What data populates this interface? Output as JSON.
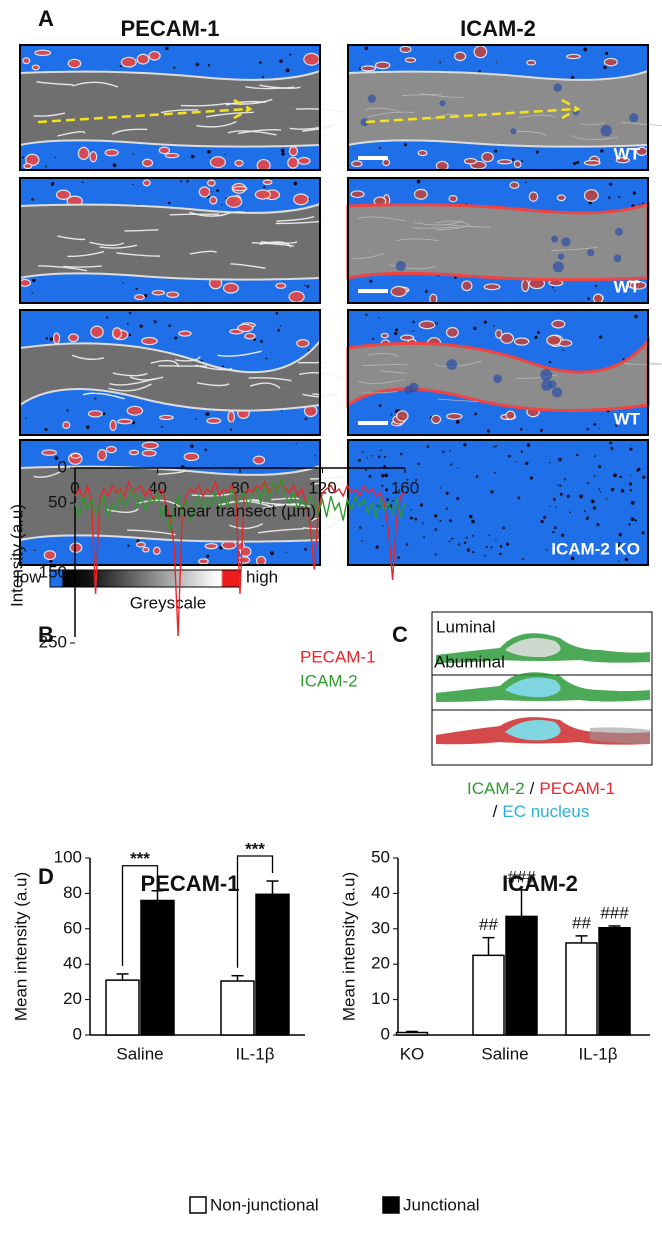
{
  "panel_a": {
    "label": "A",
    "titles": [
      "PECAM-1",
      "ICAM-2"
    ],
    "image_labels": [
      "WT",
      "WT",
      "WT",
      "ICAM-2 KO"
    ],
    "scale": {
      "low": "low",
      "high": "high",
      "title": "Greyscale"
    }
  },
  "panel_c": {
    "label": "C",
    "top": "Luminal",
    "bottom": "Abuminal",
    "caption": [
      "ICAM-2",
      "/",
      "PECAM-1",
      "/",
      "EC nucleus"
    ]
  },
  "chart_data": [
    {
      "type": "line",
      "panel_label": "B",
      "xlabel": "Linear transect (µm)",
      "ylabel": "Intensity (a.u)",
      "xlim": [
        0,
        160
      ],
      "ylim": [
        0,
        250
      ],
      "xticks": [
        0,
        40,
        80,
        120,
        160
      ],
      "yticks": [
        0,
        50,
        150,
        250
      ],
      "x": [
        0,
        2,
        4,
        6,
        8,
        10,
        12,
        14,
        16,
        18,
        20,
        22,
        24,
        26,
        28,
        30,
        32,
        34,
        36,
        38,
        40,
        42,
        44,
        46,
        48,
        50,
        52,
        54,
        56,
        58,
        60,
        62,
        64,
        66,
        68,
        70,
        72,
        74,
        76,
        78,
        80,
        82,
        84,
        86,
        88,
        90,
        92,
        94,
        96,
        98,
        100,
        102,
        104,
        106,
        108,
        110,
        112,
        114,
        116,
        118,
        120,
        122,
        124,
        126,
        128,
        130,
        132,
        134,
        136,
        138,
        140,
        142,
        144,
        146,
        148,
        150,
        152,
        154,
        156,
        158,
        160
      ],
      "series": [
        {
          "name": "PECAM-1",
          "color": "#e8262b",
          "values": [
            40,
            30,
            45,
            25,
            50,
            180,
            45,
            30,
            40,
            25,
            35,
            30,
            40,
            20,
            35,
            30,
            25,
            40,
            30,
            45,
            35,
            30,
            50,
            70,
            110,
            240,
            60,
            40,
            30,
            35,
            25,
            40,
            30,
            35,
            20,
            40,
            30,
            35,
            25,
            40,
            180,
            40,
            30,
            35,
            25,
            30,
            20,
            35,
            25,
            30,
            20,
            30,
            35,
            25,
            40,
            30,
            50,
            80,
            145,
            60,
            35,
            30,
            25,
            35,
            30,
            40,
            25,
            35,
            30,
            40,
            25,
            35,
            30,
            40,
            35,
            50,
            90,
            160,
            70,
            40,
            35
          ]
        },
        {
          "name": "ICAM-2",
          "color": "#2e9a2e",
          "values": [
            50,
            70,
            40,
            60,
            45,
            65,
            55,
            40,
            70,
            50,
            60,
            35,
            55,
            45,
            30,
            55,
            40,
            60,
            45,
            50,
            35,
            70,
            55,
            90,
            60,
            40,
            65,
            45,
            75,
            50,
            40,
            60,
            45,
            55,
            35,
            60,
            40,
            55,
            30,
            50,
            45,
            35,
            55,
            40,
            30,
            50,
            25,
            45,
            20,
            35,
            15,
            40,
            50,
            35,
            60,
            45,
            55,
            40,
            50,
            65,
            45,
            70,
            40,
            60,
            50,
            75,
            45,
            60,
            40,
            55,
            45,
            65,
            50,
            70,
            45,
            60,
            50,
            65,
            45,
            70,
            50
          ]
        }
      ]
    },
    {
      "type": "bar",
      "panel_label": "D",
      "title": "PECAM-1",
      "ylabel": "Mean intensity (a.u)",
      "categories": [
        "Saline",
        "IL-1β"
      ],
      "ylim": [
        0,
        100
      ],
      "yticks": [
        0,
        20,
        40,
        60,
        80,
        100
      ],
      "bracket_labels": [
        "***",
        "***"
      ],
      "series": [
        {
          "name": "Non-junctional",
          "color": "#ffffff",
          "values": [
            31,
            30.5
          ],
          "errors": [
            3.5,
            3
          ]
        },
        {
          "name": "Junctional",
          "color": "#000000",
          "values": [
            76,
            79.5
          ],
          "errors": [
            5.5,
            7.5
          ]
        }
      ]
    },
    {
      "type": "bar",
      "title": "ICAM-2",
      "ylabel": "Mean intensity (a.u)",
      "categories": [
        "KO",
        "Saline",
        "IL-1β"
      ],
      "ylim": [
        0,
        50
      ],
      "yticks": [
        0,
        10,
        20,
        30,
        40,
        50
      ],
      "series": [
        {
          "name": "Non-junctional",
          "color": "#ffffff",
          "values": [
            0.7,
            22.5,
            26
          ],
          "errors": [
            0.3,
            5,
            2
          ],
          "annotations": [
            null,
            "##",
            "##"
          ]
        },
        {
          "name": "Junctional",
          "color": "#000000",
          "values": [
            null,
            33.5,
            30.3
          ],
          "errors": [
            null,
            7.5,
            0.5
          ],
          "annotations": [
            null,
            "###",
            "###"
          ]
        }
      ]
    }
  ]
}
